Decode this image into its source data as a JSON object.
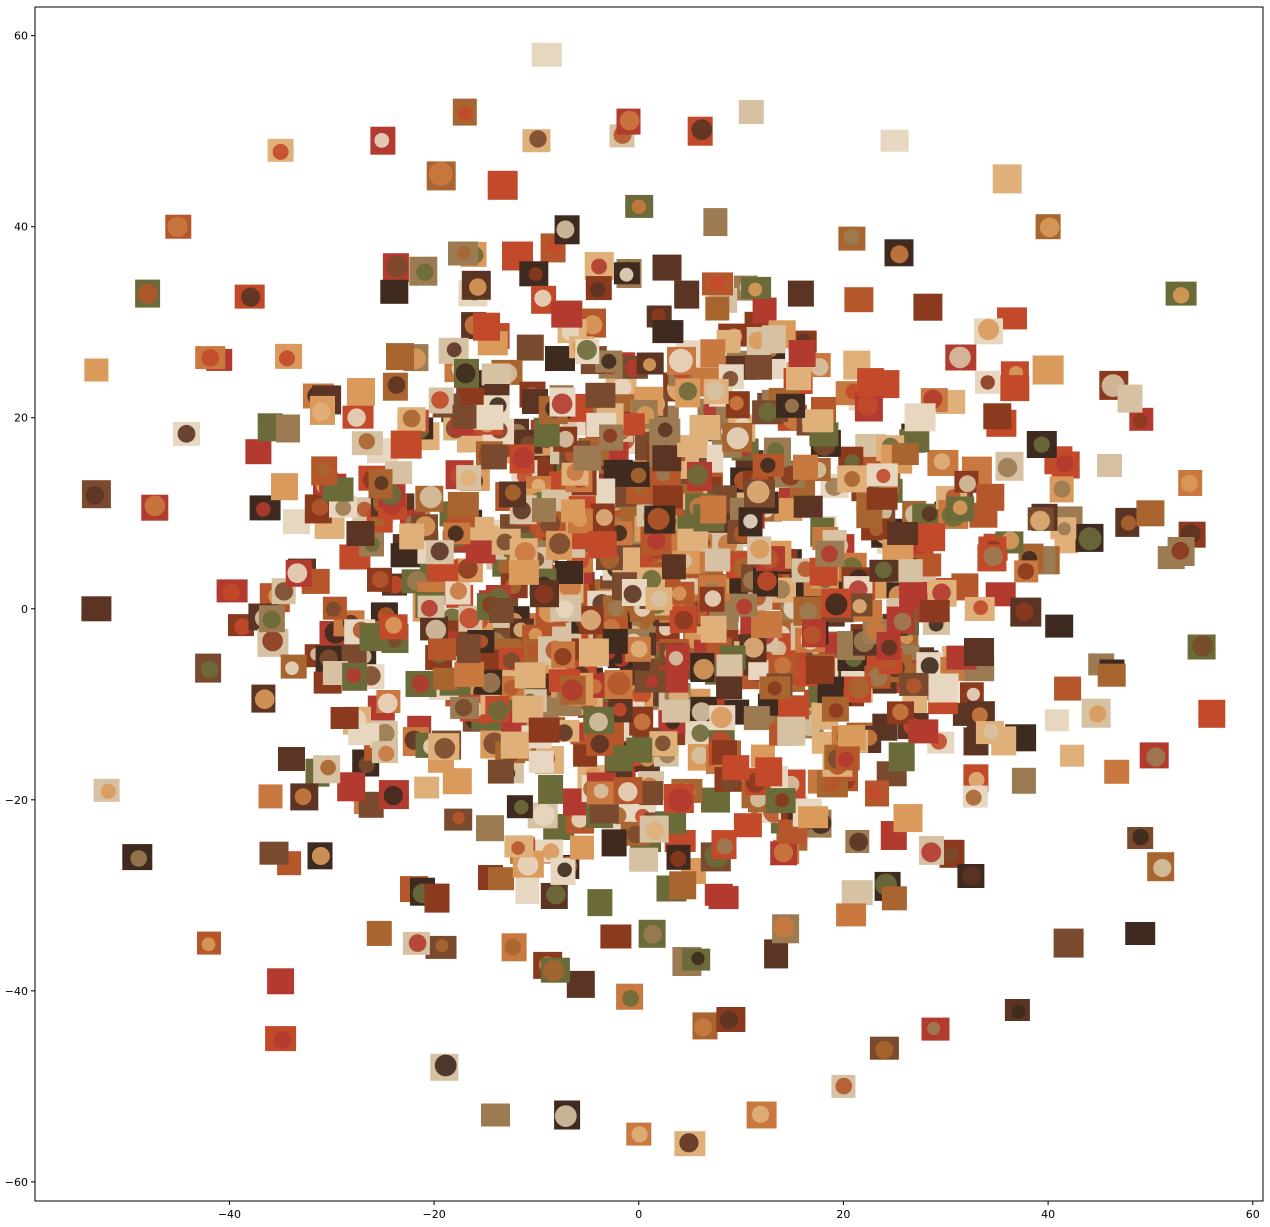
{
  "chart_data": {
    "type": "scatter",
    "description_kind": "image-thumbnail scatter of pizza photos",
    "title": "",
    "xlabel": "",
    "ylabel": "",
    "xlim": [
      -59,
      61
    ],
    "ylim": [
      -62,
      63
    ],
    "xticks": [
      -40,
      -20,
      0,
      20,
      40,
      60
    ],
    "yticks": [
      60,
      40,
      20,
      0,
      -20,
      -40,
      -60
    ],
    "xtick_labels": [
      "−40",
      "−20",
      "0",
      "20",
      "40",
      "60"
    ],
    "ytick_labels": [
      "60",
      "40",
      "20",
      "0",
      "−20",
      "−40",
      "−60"
    ],
    "grid": false,
    "legend": "none",
    "thumbnail_palette": [
      "#8b3a1e",
      "#b5562b",
      "#c9793f",
      "#d99a5b",
      "#7a4a2e",
      "#a8652f",
      "#e0b07a",
      "#5b3423",
      "#c24a2a",
      "#9c7b52",
      "#3e2a1e",
      "#d6c2a2",
      "#6b6b3a",
      "#b23a2f",
      "#e8d7c0"
    ],
    "outlier_points": [
      {
        "x": -9,
        "y": 58
      },
      {
        "x": -17,
        "y": 52
      },
      {
        "x": -1,
        "y": 51
      },
      {
        "x": 11,
        "y": 52
      },
      {
        "x": 25,
        "y": 49
      },
      {
        "x": -35,
        "y": 48
      },
      {
        "x": -25,
        "y": 49
      },
      {
        "x": -10,
        "y": 49
      },
      {
        "x": 6,
        "y": 50
      },
      {
        "x": 53,
        "y": 33
      },
      {
        "x": -53,
        "y": 25
      },
      {
        "x": -53,
        "y": 12
      },
      {
        "x": -53,
        "y": 0
      },
      {
        "x": -52,
        "y": -19
      },
      {
        "x": -49,
        "y": -26
      },
      {
        "x": -42,
        "y": -35
      },
      {
        "x": -35,
        "y": -39
      },
      {
        "x": -35,
        "y": -45
      },
      {
        "x": -19,
        "y": -48
      },
      {
        "x": -14,
        "y": -53
      },
      {
        "x": -7,
        "y": -53
      },
      {
        "x": 0,
        "y": -55
      },
      {
        "x": 5,
        "y": -56
      },
      {
        "x": 12,
        "y": -53
      },
      {
        "x": 20,
        "y": -50
      },
      {
        "x": 24,
        "y": -46
      },
      {
        "x": 29,
        "y": -44
      },
      {
        "x": 37,
        "y": -42
      },
      {
        "x": 42,
        "y": -35
      },
      {
        "x": 49,
        "y": -34
      },
      {
        "x": 51,
        "y": -27
      },
      {
        "x": 49,
        "y": -24
      },
      {
        "x": 56,
        "y": -11
      },
      {
        "x": 55,
        "y": -4
      },
      {
        "x": 53,
        "y": 6
      },
      {
        "x": 50,
        "y": 10
      },
      {
        "x": 46,
        "y": 15
      },
      {
        "x": 48,
        "y": 22
      },
      {
        "x": 40,
        "y": 25
      },
      {
        "x": 40,
        "y": 40
      },
      {
        "x": 36,
        "y": 45
      },
      {
        "x": -45,
        "y": 40
      },
      {
        "x": -48,
        "y": 33
      },
      {
        "x": 9,
        "y": -43
      }
    ]
  }
}
